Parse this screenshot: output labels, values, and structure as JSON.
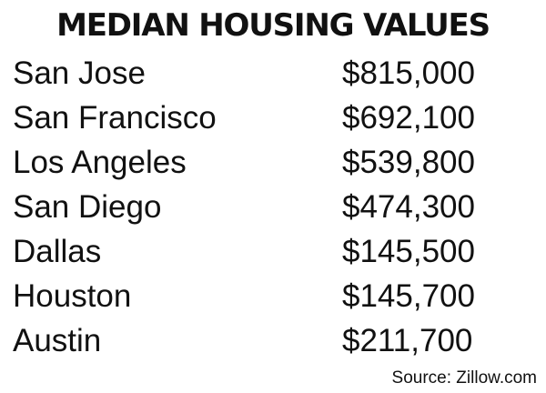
{
  "chart_data": {
    "type": "table",
    "title": "MEDIAN HOUSING VALUES",
    "rows": [
      {
        "city": "San Jose",
        "value": "$815,000"
      },
      {
        "city": "San Francisco",
        "value": "$692,100"
      },
      {
        "city": "Los Angeles",
        "value": "$539,800"
      },
      {
        "city": "San Diego",
        "value": "$474,300"
      },
      {
        "city": "Dallas",
        "value": "$145,500"
      },
      {
        "city": "Houston",
        "value": "$145,700"
      },
      {
        "city": "Austin",
        "value": "$211,700"
      }
    ],
    "source": "Source: Zillow.com"
  }
}
